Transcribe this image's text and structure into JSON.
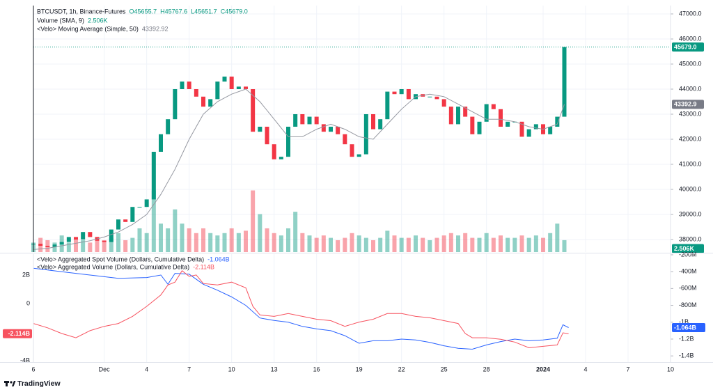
{
  "chart_data": [
    {
      "type": "candlestick",
      "title": "BTCUSDT, 1h, Binance-Futures",
      "ohlc_labels": [
        "O45655.7",
        "H45767.6",
        "L45651.7",
        "C45679.0"
      ],
      "x": [
        -5,
        -4.5,
        -4,
        -3.5,
        -3,
        -2.5,
        -2,
        -1.5,
        -1,
        -0.5,
        0,
        0.5,
        1,
        1.5,
        2,
        2.5,
        3,
        3.5,
        4,
        4.5,
        5,
        5.5,
        6,
        6.5,
        7,
        7.5,
        8,
        8.5,
        9,
        9.5,
        10,
        10.5,
        11,
        11.5,
        12,
        12.5,
        13,
        13.5,
        14,
        14.5,
        15,
        15.5,
        16,
        16.5,
        17,
        17.5,
        18,
        18.5,
        19,
        19.5,
        20,
        20.5,
        21,
        21.5,
        22,
        22.5,
        23,
        23.5,
        24,
        24.5,
        25,
        25.5,
        26,
        26.5,
        27,
        27.5,
        28,
        28.5,
        29,
        29.5,
        30,
        30.5,
        31,
        31.5,
        32,
        32.5
      ],
      "close": [
        37830,
        37750,
        37700,
        37800,
        37900,
        38100,
        38000,
        38300,
        38100,
        37950,
        37900,
        38400,
        38800,
        38700,
        39300,
        39300,
        39600,
        41500,
        42200,
        42800,
        44000,
        44300,
        44000,
        43700,
        43300,
        43600,
        44300,
        44500,
        44000,
        44100,
        44000,
        42300,
        42500,
        41800,
        41200,
        41300,
        42500,
        43000,
        42600,
        42900,
        42600,
        42300,
        42500,
        42200,
        41800,
        41300,
        41400,
        43000,
        42400,
        42800,
        43900,
        43800,
        44000,
        43600,
        43800,
        43700,
        43700,
        43600,
        43300,
        42600,
        43300,
        42900,
        42200,
        42700,
        43400,
        43200,
        42500,
        42700,
        42700,
        42100,
        42400,
        42600,
        42200,
        42500,
        42900,
        45679
      ],
      "last_price_label": "45679.0",
      "up_color": "#089981",
      "down_color": "#f23645",
      "xlim": [
        -5,
        40
      ],
      "ylim": [
        37500,
        47333
      ],
      "yticks": [
        {
          "value": 38000,
          "label": "38000.0"
        },
        {
          "value": 39000,
          "label": "39000.0"
        },
        {
          "value": 40000,
          "label": "40000.0"
        },
        {
          "value": 41000,
          "label": "41000.0"
        },
        {
          "value": 42000,
          "label": "42000.0"
        },
        {
          "value": 43000,
          "label": "43000.0"
        },
        {
          "value": 44000,
          "label": "44000.0"
        },
        {
          "value": 45000,
          "label": "45000.0"
        },
        {
          "value": 46000,
          "label": "46000.0"
        },
        {
          "value": 47000,
          "label": "47000.0"
        }
      ],
      "overlays": [
        {
          "name": "<Velo> Moving Average (Simple, 50)",
          "legend_value": "43392.92",
          "tag_label": "43392.9",
          "color": "#9598a1",
          "x": [
            -5,
            -4,
            -3,
            -2,
            -1,
            0,
            1,
            2,
            3,
            4,
            5,
            6,
            7,
            8,
            9,
            10,
            11,
            12,
            13,
            14,
            15,
            16,
            17,
            18,
            19,
            20,
            21,
            22,
            23,
            24,
            25,
            26,
            27,
            28,
            29,
            30,
            31,
            32,
            32.5
          ],
          "values": [
            37600,
            37650,
            37750,
            37850,
            37950,
            38100,
            38300,
            38600,
            39000,
            39800,
            40800,
            42000,
            43000,
            43500,
            43800,
            44000,
            43500,
            42800,
            42100,
            42100,
            42400,
            42600,
            42400,
            42100,
            42000,
            42600,
            43200,
            43700,
            43800,
            43700,
            43400,
            43100,
            42800,
            42800,
            42700,
            42500,
            42400,
            42600,
            43392.92
          ]
        }
      ],
      "volume": {
        "name": "Volume (SMA, 9)",
        "legend_value": "2.506K",
        "tag_label": "2.506K",
        "ylim": [
          0,
          52
        ],
        "values": [
          2,
          3,
          2.5,
          2,
          3.5,
          2,
          3,
          2.5,
          2,
          3,
          2.5,
          3,
          4,
          2.5,
          3,
          5,
          4,
          13,
          6,
          5,
          9,
          6,
          5,
          4,
          5,
          4,
          3.5,
          4,
          5,
          4,
          4.5,
          13,
          8,
          5,
          4,
          3.5,
          5,
          8.5,
          4,
          3.5,
          3,
          3.5,
          3,
          2.5,
          3,
          4,
          3.5,
          3,
          2.5,
          3,
          4.5,
          3.5,
          3,
          3,
          3.5,
          3,
          2.5,
          3,
          3.5,
          4,
          3.5,
          4,
          3,
          3,
          4,
          3,
          3.5,
          3,
          3,
          3.5,
          3,
          3.5,
          3,
          4,
          6,
          2.506
        ]
      }
    },
    {
      "type": "line",
      "series": [
        {
          "name": "<Velo> Aggregated Spot Volume (Dollars, Cumulative Delta)",
          "legend_value": "-1.064B",
          "tag_label": "-1.064B",
          "color": "#2962ff",
          "axis": "y2",
          "x": [
            -5,
            -3,
            -1,
            1,
            3,
            4,
            4.5,
            5,
            6,
            7,
            8,
            9,
            10,
            11,
            12,
            13,
            14,
            15,
            16,
            17,
            18,
            19,
            20,
            21,
            22,
            23,
            24,
            25,
            26,
            27,
            28,
            29,
            30,
            31,
            32,
            32.4,
            32.8
          ],
          "values": [
            -0.36,
            -0.4,
            -0.44,
            -0.48,
            -0.47,
            -0.44,
            -0.55,
            -0.42,
            -0.43,
            -0.55,
            -0.62,
            -0.7,
            -0.8,
            -0.95,
            -0.98,
            -1.0,
            -1.05,
            -1.08,
            -1.1,
            -1.16,
            -1.25,
            -1.22,
            -1.22,
            -1.2,
            -1.21,
            -1.24,
            -1.28,
            -1.31,
            -1.32,
            -1.27,
            -1.23,
            -1.2,
            -1.22,
            -1.21,
            -1.19,
            -1.03,
            -1.064
          ]
        },
        {
          "name": "<Velo> Aggregated Volume (Dollars, Cumulative Delta)",
          "legend_value": "-2.114B",
          "tag_label": "-2.114B",
          "color": "#f7525f",
          "x": [
            -5,
            -4,
            -3,
            -2,
            -1,
            0,
            1,
            2,
            3,
            4,
            4.5,
            5,
            5.5,
            6,
            6.5,
            7,
            8,
            9,
            10,
            10.5,
            11,
            12,
            13,
            14,
            15,
            16,
            17,
            18,
            19,
            20,
            21,
            22,
            23,
            24,
            25,
            25.5,
            26,
            27,
            28,
            29,
            30,
            31,
            32,
            32.4,
            32.8
          ],
          "values": [
            -1.4,
            -1.7,
            -2.1,
            -2.4,
            -1.9,
            -1.6,
            -1.4,
            -0.9,
            -0.2,
            0.6,
            1.3,
            1.5,
            2.3,
            1.9,
            2.0,
            1.4,
            1.3,
            1.5,
            1.1,
            -0.2,
            -0.8,
            -0.9,
            -0.7,
            -0.9,
            -1.1,
            -1.2,
            -1.6,
            -1.3,
            -1.1,
            -0.7,
            -0.7,
            -0.9,
            -1.0,
            -1.2,
            -1.4,
            -2.1,
            -2.4,
            -2.4,
            -2.5,
            -2.7,
            -3.1,
            -3.0,
            -2.9,
            -2.05,
            -2.114
          ]
        }
      ],
      "xlim": [
        -5,
        40
      ],
      "xticks": [
        {
          "value": -5,
          "label": "6"
        },
        {
          "value": 0,
          "label": "Dec"
        },
        {
          "value": 3,
          "label": "4"
        },
        {
          "value": 6,
          "label": "7"
        },
        {
          "value": 9,
          "label": "10"
        },
        {
          "value": 12,
          "label": "13"
        },
        {
          "value": 15,
          "label": "16"
        },
        {
          "value": 18,
          "label": "19"
        },
        {
          "value": 21,
          "label": "22"
        },
        {
          "value": 24,
          "label": "25"
        },
        {
          "value": 27,
          "label": "28"
        },
        {
          "value": 31,
          "label": "2024"
        },
        {
          "value": 34,
          "label": "4"
        },
        {
          "value": 37,
          "label": "7"
        },
        {
          "value": 40,
          "label": "10"
        }
      ],
      "ylim": [
        -4.1,
        3.46
      ],
      "yticks": [
        {
          "value": 2,
          "label": "2B"
        },
        0,
        {
          "value": -4,
          "label": "-4B"
        }
      ],
      "y2lim": [
        -1.473,
        -0.192
      ],
      "y2ticks": [
        {
          "value": -0.2,
          "label": "-200M"
        },
        {
          "value": -0.4,
          "label": "-400M"
        },
        {
          "value": -0.6,
          "label": "-600M"
        },
        {
          "value": -0.8,
          "label": "-800M"
        },
        {
          "value": -1,
          "label": "-1B"
        },
        {
          "value": -1.2,
          "label": "-1.2B"
        },
        {
          "value": -1.4,
          "label": "-1.4B"
        }
      ]
    }
  ],
  "footer": {
    "brand": "TradingView"
  }
}
